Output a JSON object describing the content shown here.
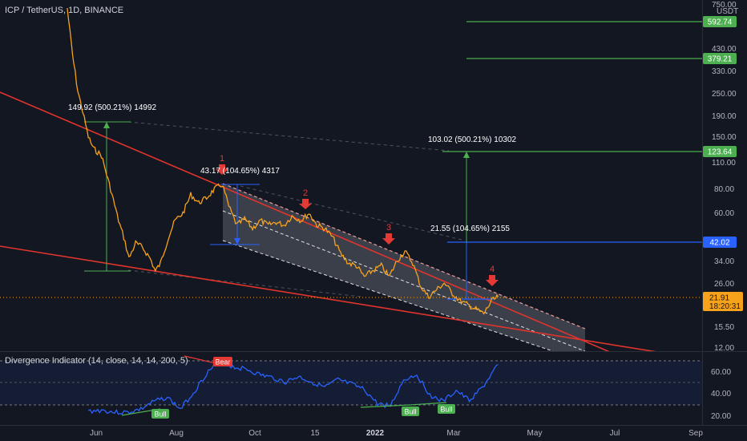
{
  "header": {
    "title": "ICP / TetherUS, 1D, BINANCE",
    "currency": "USDT"
  },
  "indicator": {
    "title": "Divergence Indicator (14, close, 14, 14, 200, 5)",
    "ticks": [
      "60.00",
      "40.00",
      "20.00"
    ],
    "bull_label": "Bull",
    "bear_label": "Bear",
    "color": "#2962ff"
  },
  "price_axis": {
    "ticks": [
      "750.00",
      "430.00",
      "330.00",
      "250.00",
      "190.00",
      "150.00",
      "110.00",
      "80.00",
      "60.00",
      "34.00",
      "26.00",
      "15.50",
      "12.00"
    ],
    "badges": {
      "b592": "592.74",
      "b379": "379.21",
      "b123": "123.64",
      "b42": "42.02",
      "current": "21.91",
      "countdown": "18:20:31"
    }
  },
  "time_axis": {
    "labels": [
      "Jun",
      "Aug",
      "Oct",
      "15",
      "2022",
      "Mar",
      "May",
      "Jul",
      "Sep"
    ]
  },
  "annotations": {
    "measure_1_upper": "149.92 (500.21%) 14992",
    "measure_1_lower": "43.17 (104.65%) 4317",
    "measure_2_upper": "103.02 (500.21%) 10302",
    "measure_2_lower": "21.55 (104.65%) 2155",
    "arrows": [
      "1",
      "2",
      "3",
      "4"
    ]
  },
  "colors": {
    "price_line": "#f7a21b",
    "trend_line": "#e0342c",
    "target_line": "#4caf50",
    "level_blue": "#2962ff",
    "arrow": "#e53935",
    "channel_fill": "#5d606b"
  },
  "chart_data": {
    "type": "line",
    "symbol": "ICP / TetherUS",
    "interval": "1D",
    "exchange": "BINANCE",
    "y_scale": "log",
    "ylim": [
      11.5,
      760
    ],
    "series": [
      {
        "x": [
          "2021-05-10",
          "2021-05-14",
          "2021-05-18",
          "2021-05-22",
          "2021-05-26",
          "2021-05-30",
          "2021-06-05",
          "2021-06-12",
          "2021-06-18",
          "2021-06-22",
          "2021-06-26",
          "2021-07-01",
          "2021-07-06",
          "2021-07-12",
          "2021-07-16",
          "2021-07-20",
          "2021-07-26",
          "2021-07-31",
          "2021-08-06",
          "2021-08-12",
          "2021-08-18",
          "2021-08-24",
          "2021-08-30",
          "2021-09-05",
          "2021-09-10",
          "2021-09-16",
          "2021-09-22",
          "2021-09-28",
          "2021-10-04",
          "2021-10-10",
          "2021-10-16",
          "2021-10-22",
          "2021-10-28",
          "2021-11-04",
          "2021-11-10",
          "2021-11-16",
          "2021-11-22",
          "2021-11-28",
          "2021-12-04",
          "2021-12-10",
          "2021-12-16",
          "2021-12-22",
          "2021-12-28",
          "2022-01-04",
          "2022-01-10",
          "2022-01-16",
          "2022-01-22",
          "2022-01-28",
          "2022-02-03",
          "2022-02-09",
          "2022-02-15",
          "2022-02-21",
          "2022-02-27",
          "2022-03-05",
          "2022-03-11",
          "2022-03-17",
          "2022-03-23",
          "2022-03-29",
          "2022-04-03"
        ],
        "values": [
          700,
          400,
          260,
          200,
          150,
          130,
          120,
          80,
          55,
          45,
          35,
          42,
          40,
          35,
          30,
          33,
          45,
          55,
          60,
          75,
          68,
          72,
          80,
          85,
          65,
          52,
          56,
          50,
          55,
          52,
          54,
          52,
          58,
          55,
          60,
          52,
          50,
          45,
          37,
          33,
          32,
          28,
          30,
          32,
          28,
          34,
          38,
          33,
          25,
          22,
          24,
          26,
          23,
          21,
          20,
          19,
          18,
          21,
          22
        ]
      }
    ],
    "indicator_series": {
      "ylim": [
        18,
        72
      ],
      "x": [
        "2021-05-26",
        "2021-06-05",
        "2021-06-15",
        "2021-06-25",
        "2021-07-05",
        "2021-07-15",
        "2021-07-25",
        "2021-08-04",
        "2021-08-14",
        "2021-08-24",
        "2021-09-03",
        "2021-09-13",
        "2021-09-23",
        "2021-10-03",
        "2021-10-13",
        "2021-10-23",
        "2021-11-02",
        "2021-11-12",
        "2021-11-22",
        "2021-12-02",
        "2021-12-12",
        "2021-12-22",
        "2022-01-01",
        "2022-01-11",
        "2022-01-21",
        "2022-01-31",
        "2022-02-10",
        "2022-02-20",
        "2022-03-02",
        "2022-03-12",
        "2022-03-22",
        "2022-04-03"
      ],
      "values": [
        23,
        24,
        22,
        22,
        25,
        32,
        36,
        25,
        40,
        58,
        70,
        64,
        62,
        57,
        54,
        50,
        55,
        50,
        45,
        52,
        48,
        43,
        30,
        28,
        52,
        57,
        38,
        32,
        42,
        33,
        45,
        66
      ]
    },
    "channel": {
      "upper": {
        "from": [
          "2021-09-01",
          85
        ],
        "to": [
          "2022-05-20",
          16
        ]
      },
      "lower": {
        "from": [
          "2021-09-01",
          44
        ],
        "to": [
          "2022-05-20",
          8.5
        ]
      }
    },
    "levels": [
      592.74,
      379.21,
      123.64,
      42.02,
      21.91
    ],
    "current_price": 21.91
  }
}
